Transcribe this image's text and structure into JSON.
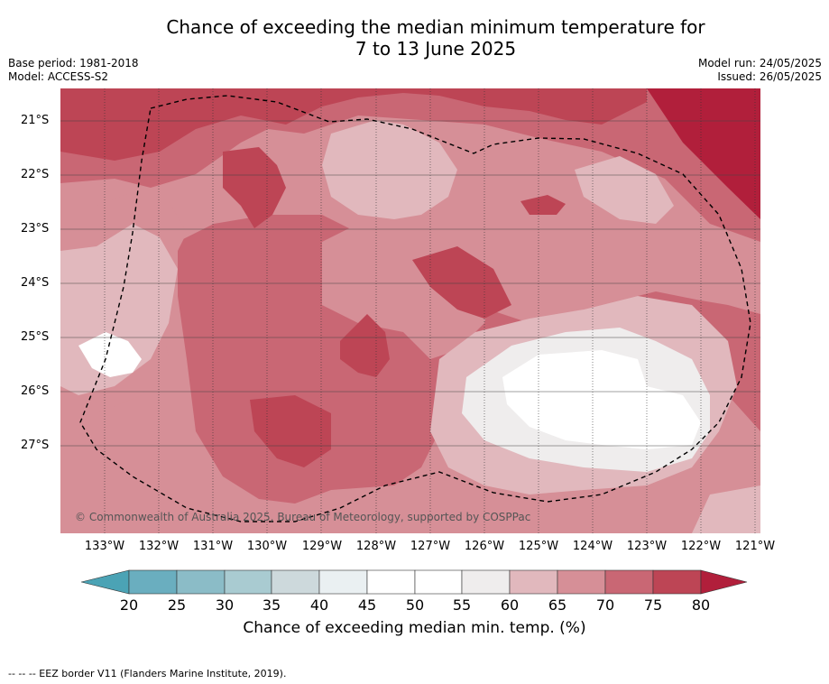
{
  "title_line1": "Chance of exceeding the median minimum temperature for",
  "title_line2": "7 to 13 June 2025",
  "meta": {
    "base_period": "Base period: 1981-2018",
    "model": "Model: ACCESS-S2",
    "model_run": "Model run: 24/05/2025",
    "issued": "Issued: 26/05/2025"
  },
  "axes": {
    "lat_labels": [
      "21°S",
      "22°S",
      "23°S",
      "24°S",
      "25°S",
      "26°S",
      "27°S"
    ],
    "lon_labels": [
      "133°W",
      "132°W",
      "131°W",
      "130°W",
      "129°W",
      "128°W",
      "127°W",
      "126°W",
      "125°W",
      "124°W",
      "123°W",
      "122°W",
      "121°W"
    ]
  },
  "copyright": "© Commonwealth of Australia 2025, Bureau of Meteorology, supported by COSPPac",
  "colorbar": {
    "ticks": [
      "20",
      "25",
      "30",
      "35",
      "40",
      "45",
      "50",
      "55",
      "60",
      "65",
      "70",
      "75",
      "80"
    ],
    "title": "Chance of exceeding median min. temp. (%)",
    "colors": [
      "#4ba3b5",
      "#6aaebf",
      "#8bbcc7",
      "#a9cbd1",
      "#cdd9dc",
      "#eaf0f2",
      "#ffffff",
      "#ffffff",
      "#efeded",
      "#e1b8bd",
      "#d68f97",
      "#c96774",
      "#bd4555",
      "#b11f3b"
    ]
  },
  "map_colors": {
    "c60": "#efeded",
    "c65": "#e1b8bd",
    "c70": "#d68f97",
    "c75": "#c96774",
    "c80": "#bd4555",
    "c85": "#b11f3b"
  },
  "footnote": "--  --  -- EEZ border V11 (Flanders Marine Institute, 2019)."
}
